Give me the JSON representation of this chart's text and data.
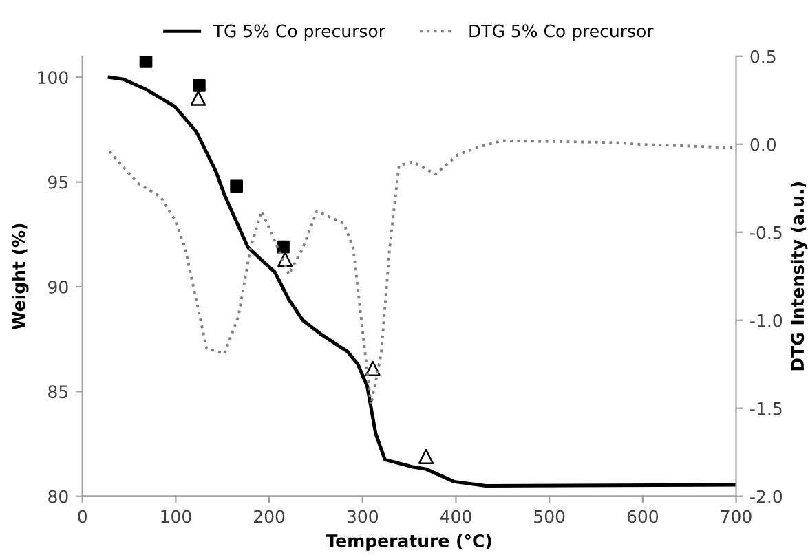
{
  "chart_data": {
    "type": "line",
    "xlabel": "Temperature (°C)",
    "ylabel": "Weight (%)",
    "y2label": "DTG Intensity (a.u.)",
    "xlim": [
      0,
      700
    ],
    "xticks": [
      0,
      100,
      200,
      300,
      400,
      500,
      600,
      700
    ],
    "ylim": [
      80,
      101
    ],
    "yticks": [
      80,
      85,
      90,
      95,
      100
    ],
    "y2lim": [
      -2.0,
      0.5
    ],
    "y2ticks": [
      {
        "value": -2.0,
        "label": "-2.0"
      },
      {
        "value": -1.5,
        "label": "-1.5"
      },
      {
        "value": -1.0,
        "label": "-1.0"
      },
      {
        "value": -0.5,
        "label": "-0.5"
      },
      {
        "value": 0.0,
        "label": "0.0"
      },
      {
        "value": 0.5,
        "label": "0.5"
      }
    ],
    "grid": false,
    "legend": "top",
    "marker": "none",
    "series": [
      {
        "name": "TG 5% Co precursor",
        "color": "#000000",
        "line_style": "solid",
        "x": [
          29,
          44,
          69,
          99,
          122,
          143,
          152,
          177,
          196,
          206,
          221,
          236,
          255,
          284,
          295,
          305,
          314,
          324,
          354,
          368,
          398,
          432,
          700
        ],
        "values": [
          100,
          99.9,
          99.4,
          98.6,
          97.4,
          95.5,
          94.4,
          91.9,
          91.1,
          90.7,
          89.4,
          88.4,
          87.75,
          86.9,
          86.3,
          85.25,
          83.0,
          81.75,
          81.4,
          81.3,
          80.7,
          80.5,
          80.55
        ]
      },
      {
        "name": "DTG 5% Co precursor",
        "color": "#808080",
        "line_style": "dotted",
        "axis": "y2",
        "x": [
          29,
          59,
          84,
          99,
          110,
          133,
          152,
          167,
          180,
          192,
          211,
          221,
          236,
          251,
          280,
          290,
          309,
          320,
          329,
          339,
          354,
          378,
          402,
          422,
          449,
          570,
          594,
          700
        ],
        "values": [
          -0.04,
          -0.22,
          -0.3,
          -0.43,
          -0.59,
          -1.16,
          -1.19,
          -0.98,
          -0.59,
          -0.38,
          -0.61,
          -0.74,
          -0.59,
          -0.38,
          -0.45,
          -0.59,
          -1.48,
          -1.19,
          -0.59,
          -0.12,
          -0.1,
          -0.17,
          -0.06,
          -0.02,
          0.02,
          0.01,
          0.0,
          -0.02
        ]
      },
      {
        "type": "scatter",
        "marker": "square",
        "color": "#000000",
        "x": [
          68,
          125,
          165,
          215
        ],
        "values": [
          100.75,
          99.6,
          94.8,
          91.9
        ]
      },
      {
        "type": "scatter",
        "marker": "triangle",
        "color": "#000000",
        "x": [
          124,
          217,
          311,
          368
        ],
        "values": [
          99.0,
          91.3,
          86.1,
          81.9
        ]
      }
    ]
  }
}
